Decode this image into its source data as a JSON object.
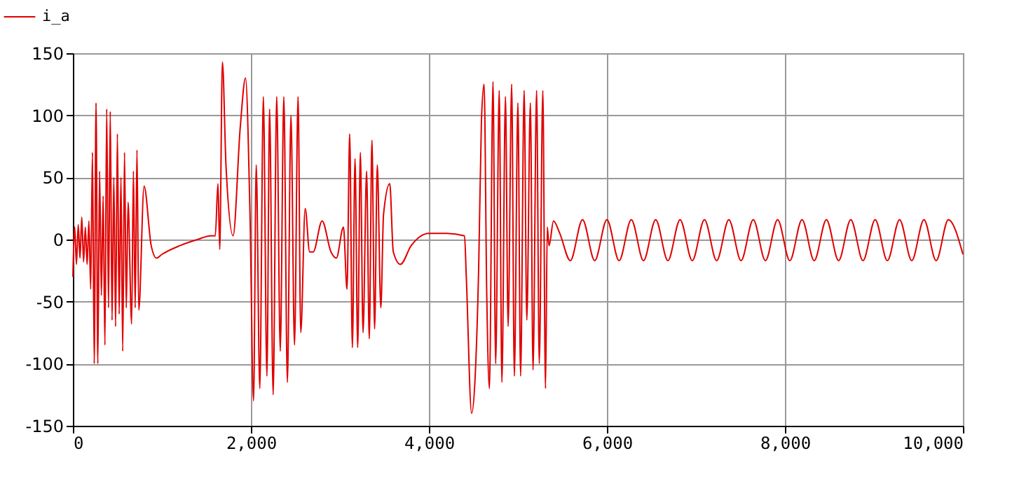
{
  "chart_data": {
    "type": "line",
    "xlim": [
      0,
      10000
    ],
    "ylim": [
      -150,
      150
    ],
    "xticks": [
      0,
      {
        "value": 2000,
        "label": "2,000"
      },
      {
        "value": 4000,
        "label": "4,000"
      },
      {
        "value": 6000,
        "label": "6,000"
      },
      {
        "value": 8000,
        "label": "8,000"
      },
      {
        "value": 10000,
        "label": "10,000"
      }
    ],
    "yticks": [
      -150,
      -100,
      -50,
      0,
      50,
      100,
      150
    ],
    "grid": true,
    "legend": "top left",
    "line_style": "solid",
    "marker": "none",
    "series": [
      {
        "name": "i_a",
        "color": "#e00000",
        "x": [
          0,
          20,
          40,
          60,
          80,
          100,
          120,
          140,
          160,
          180,
          200,
          220,
          240,
          260,
          280,
          300,
          320,
          340,
          360,
          380,
          400,
          420,
          440,
          460,
          480,
          500,
          520,
          540,
          560,
          580,
          600,
          620,
          660,
          680,
          700,
          720,
          740,
          800,
          880,
          940,
          1000,
          1200,
          1400,
          1550,
          1600,
          1630,
          1650,
          1680,
          1720,
          1800,
          1880,
          1940,
          1990,
          2030,
          2060,
          2100,
          2140,
          2180,
          2210,
          2250,
          2290,
          2330,
          2370,
          2410,
          2450,
          2490,
          2530,
          2560,
          2610,
          2660,
          2700,
          2800,
          2900,
          2960,
          3040,
          3080,
          3110,
          3140,
          3170,
          3200,
          3230,
          3260,
          3300,
          3330,
          3360,
          3390,
          3420,
          3460,
          3490,
          3560,
          3600,
          3680,
          3800,
          4000,
          4200,
          4400,
          4420,
          4480,
          4520,
          4560,
          4590,
          4620,
          4650,
          4680,
          4720,
          4750,
          4790,
          4820,
          4860,
          4890,
          4930,
          4960,
          5000,
          5030,
          5070,
          5100,
          5140,
          5170,
          5210,
          5240,
          5280,
          5310,
          5330,
          5350,
          5400,
          5470,
          5589,
          5726,
          5863,
          6000,
          6137,
          6274,
          6411,
          6548,
          6685,
          6822,
          6959,
          7096,
          7233,
          7370,
          7507,
          7644,
          7781,
          7918,
          8055,
          8192,
          8329,
          8466,
          8603,
          8740,
          8877,
          9014,
          9151,
          9288,
          9425,
          9562,
          9699,
          9836,
          10000
        ],
        "values": [
          -30,
          10,
          -20,
          12,
          -15,
          18,
          -18,
          10,
          -20,
          15,
          -40,
          70,
          -100,
          110,
          -100,
          55,
          -45,
          35,
          -85,
          105,
          -55,
          103,
          -65,
          50,
          -70,
          85,
          -60,
          50,
          -90,
          70,
          -55,
          30,
          -68,
          55,
          -55,
          72,
          -57,
          43,
          -5,
          -15,
          -12,
          -5,
          0,
          3,
          3,
          45,
          -8,
          143,
          60,
          3,
          90,
          130,
          20,
          -130,
          60,
          -120,
          115,
          -110,
          105,
          -125,
          115,
          -90,
          115,
          -115,
          100,
          -85,
          115,
          -75,
          25,
          -10,
          -10,
          15,
          -10,
          -15,
          10,
          -40,
          85,
          -87,
          65,
          -87,
          70,
          -75,
          55,
          -80,
          80,
          -72,
          60,
          -55,
          20,
          45,
          -10,
          -20,
          -5,
          5,
          5,
          3,
          -30,
          -140,
          -110,
          -20,
          95,
          125,
          -45,
          -120,
          127,
          -100,
          120,
          -115,
          115,
          -70,
          125,
          -110,
          110,
          -110,
          120,
          -65,
          110,
          -105,
          120,
          -100,
          120,
          -120,
          10,
          -5,
          15,
          5,
          -17,
          16,
          -17,
          16,
          -17,
          16,
          -17,
          16,
          -17,
          16,
          -17,
          16,
          -17,
          16,
          -17,
          16,
          -17,
          16,
          -17,
          16,
          -17,
          16,
          -17,
          16,
          -17,
          16,
          -17,
          16,
          -17,
          16,
          -17,
          16,
          -12
        ]
      }
    ]
  }
}
